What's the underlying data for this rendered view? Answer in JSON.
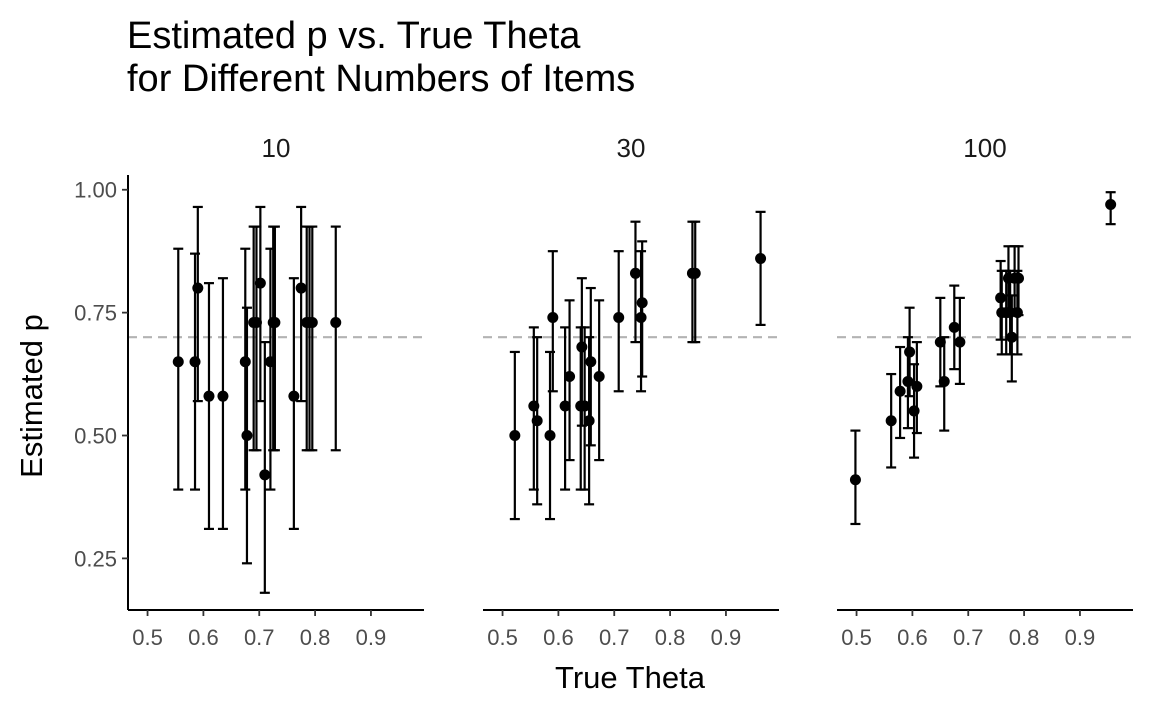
{
  "chart_data": {
    "type": "scatter",
    "title": "Estimated p vs. True Theta\nfor Different Numbers of Items",
    "title_lines": [
      "Estimated p vs. True Theta",
      "for Different Numbers of Items"
    ],
    "xlabel": "True Theta",
    "ylabel": "Estimated p",
    "facet_by": "Numbers of Items",
    "reference_line": {
      "y": 0.7,
      "style": "dashed",
      "color": "#b3b3b3"
    },
    "xlim": [
      0.465,
      0.995
    ],
    "ylim": [
      0.145,
      1.03
    ],
    "x_ticks": [
      0.5,
      0.6,
      0.7,
      0.8,
      0.9
    ],
    "x_tick_labels": [
      "0.5",
      "0.6",
      "0.7",
      "0.8",
      "0.9"
    ],
    "y_ticks": [
      0.25,
      0.5,
      0.75,
      1.0
    ],
    "y_tick_labels": [
      "0.25",
      "0.50",
      "0.75",
      "1.00"
    ],
    "grid": false,
    "point_color": "#000000",
    "panels": [
      {
        "label": "10",
        "xlim": [
          0.465,
          0.995
        ],
        "points": [
          {
            "x": 0.555,
            "y": 0.65,
            "lo": 0.39,
            "hi": 0.88
          },
          {
            "x": 0.585,
            "y": 0.65,
            "lo": 0.39,
            "hi": 0.87
          },
          {
            "x": 0.59,
            "y": 0.8,
            "lo": 0.57,
            "hi": 0.965
          },
          {
            "x": 0.61,
            "y": 0.58,
            "lo": 0.31,
            "hi": 0.81
          },
          {
            "x": 0.635,
            "y": 0.58,
            "lo": 0.31,
            "hi": 0.82
          },
          {
            "x": 0.675,
            "y": 0.65,
            "lo": 0.39,
            "hi": 0.88
          },
          {
            "x": 0.678,
            "y": 0.5,
            "lo": 0.24,
            "hi": 0.76
          },
          {
            "x": 0.69,
            "y": 0.73,
            "lo": 0.47,
            "hi": 0.925
          },
          {
            "x": 0.695,
            "y": 0.73,
            "lo": 0.47,
            "hi": 0.925
          },
          {
            "x": 0.702,
            "y": 0.81,
            "lo": 0.57,
            "hi": 0.965
          },
          {
            "x": 0.71,
            "y": 0.42,
            "lo": 0.18,
            "hi": 0.69
          },
          {
            "x": 0.72,
            "y": 0.65,
            "lo": 0.39,
            "hi": 0.88
          },
          {
            "x": 0.725,
            "y": 0.73,
            "lo": 0.47,
            "hi": 0.925
          },
          {
            "x": 0.728,
            "y": 0.73,
            "lo": 0.47,
            "hi": 0.925
          },
          {
            "x": 0.762,
            "y": 0.58,
            "lo": 0.31,
            "hi": 0.82
          },
          {
            "x": 0.775,
            "y": 0.8,
            "lo": 0.57,
            "hi": 0.965
          },
          {
            "x": 0.785,
            "y": 0.73,
            "lo": 0.47,
            "hi": 0.925
          },
          {
            "x": 0.79,
            "y": 0.73,
            "lo": 0.47,
            "hi": 0.925
          },
          {
            "x": 0.795,
            "y": 0.73,
            "lo": 0.47,
            "hi": 0.925
          },
          {
            "x": 0.837,
            "y": 0.73,
            "lo": 0.47,
            "hi": 0.925
          }
        ]
      },
      {
        "label": "30",
        "xlim": [
          0.465,
          0.995
        ],
        "points": [
          {
            "x": 0.522,
            "y": 0.5,
            "lo": 0.33,
            "hi": 0.67
          },
          {
            "x": 0.556,
            "y": 0.56,
            "lo": 0.39,
            "hi": 0.72
          },
          {
            "x": 0.562,
            "y": 0.53,
            "lo": 0.36,
            "hi": 0.7
          },
          {
            "x": 0.585,
            "y": 0.5,
            "lo": 0.33,
            "hi": 0.67
          },
          {
            "x": 0.59,
            "y": 0.74,
            "lo": 0.59,
            "hi": 0.875
          },
          {
            "x": 0.612,
            "y": 0.56,
            "lo": 0.39,
            "hi": 0.72
          },
          {
            "x": 0.62,
            "y": 0.62,
            "lo": 0.45,
            "hi": 0.775
          },
          {
            "x": 0.64,
            "y": 0.56,
            "lo": 0.39,
            "hi": 0.72
          },
          {
            "x": 0.642,
            "y": 0.68,
            "lo": 0.52,
            "hi": 0.82
          },
          {
            "x": 0.647,
            "y": 0.56,
            "lo": 0.39,
            "hi": 0.72
          },
          {
            "x": 0.655,
            "y": 0.53,
            "lo": 0.36,
            "hi": 0.7
          },
          {
            "x": 0.658,
            "y": 0.65,
            "lo": 0.48,
            "hi": 0.8
          },
          {
            "x": 0.673,
            "y": 0.62,
            "lo": 0.45,
            "hi": 0.775
          },
          {
            "x": 0.708,
            "y": 0.74,
            "lo": 0.59,
            "hi": 0.875
          },
          {
            "x": 0.738,
            "y": 0.83,
            "lo": 0.69,
            "hi": 0.935
          },
          {
            "x": 0.748,
            "y": 0.74,
            "lo": 0.59,
            "hi": 0.875
          },
          {
            "x": 0.75,
            "y": 0.77,
            "lo": 0.62,
            "hi": 0.895
          },
          {
            "x": 0.84,
            "y": 0.83,
            "lo": 0.69,
            "hi": 0.935
          },
          {
            "x": 0.845,
            "y": 0.83,
            "lo": 0.69,
            "hi": 0.935
          },
          {
            "x": 0.962,
            "y": 0.86,
            "lo": 0.725,
            "hi": 0.955
          }
        ]
      },
      {
        "label": "100",
        "xlim": [
          0.465,
          0.995
        ],
        "points": [
          {
            "x": 0.498,
            "y": 0.41,
            "lo": 0.32,
            "hi": 0.51
          },
          {
            "x": 0.562,
            "y": 0.53,
            "lo": 0.435,
            "hi": 0.625
          },
          {
            "x": 0.578,
            "y": 0.59,
            "lo": 0.495,
            "hi": 0.68
          },
          {
            "x": 0.592,
            "y": 0.61,
            "lo": 0.515,
            "hi": 0.7
          },
          {
            "x": 0.595,
            "y": 0.67,
            "lo": 0.58,
            "hi": 0.76
          },
          {
            "x": 0.603,
            "y": 0.55,
            "lo": 0.455,
            "hi": 0.645
          },
          {
            "x": 0.608,
            "y": 0.6,
            "lo": 0.505,
            "hi": 0.69
          },
          {
            "x": 0.65,
            "y": 0.69,
            "lo": 0.6,
            "hi": 0.78
          },
          {
            "x": 0.657,
            "y": 0.61,
            "lo": 0.51,
            "hi": 0.7
          },
          {
            "x": 0.675,
            "y": 0.72,
            "lo": 0.635,
            "hi": 0.805
          },
          {
            "x": 0.685,
            "y": 0.69,
            "lo": 0.605,
            "hi": 0.78
          },
          {
            "x": 0.758,
            "y": 0.78,
            "lo": 0.695,
            "hi": 0.855
          },
          {
            "x": 0.76,
            "y": 0.75,
            "lo": 0.665,
            "hi": 0.835
          },
          {
            "x": 0.768,
            "y": 0.75,
            "lo": 0.665,
            "hi": 0.835
          },
          {
            "x": 0.772,
            "y": 0.82,
            "lo": 0.745,
            "hi": 0.885
          },
          {
            "x": 0.775,
            "y": 0.75,
            "lo": 0.665,
            "hi": 0.835
          },
          {
            "x": 0.778,
            "y": 0.7,
            "lo": 0.61,
            "hi": 0.785
          },
          {
            "x": 0.783,
            "y": 0.82,
            "lo": 0.745,
            "hi": 0.885
          },
          {
            "x": 0.788,
            "y": 0.75,
            "lo": 0.665,
            "hi": 0.835
          },
          {
            "x": 0.79,
            "y": 0.82,
            "lo": 0.745,
            "hi": 0.885
          },
          {
            "x": 0.955,
            "y": 0.97,
            "lo": 0.93,
            "hi": 0.995
          }
        ]
      }
    ]
  }
}
